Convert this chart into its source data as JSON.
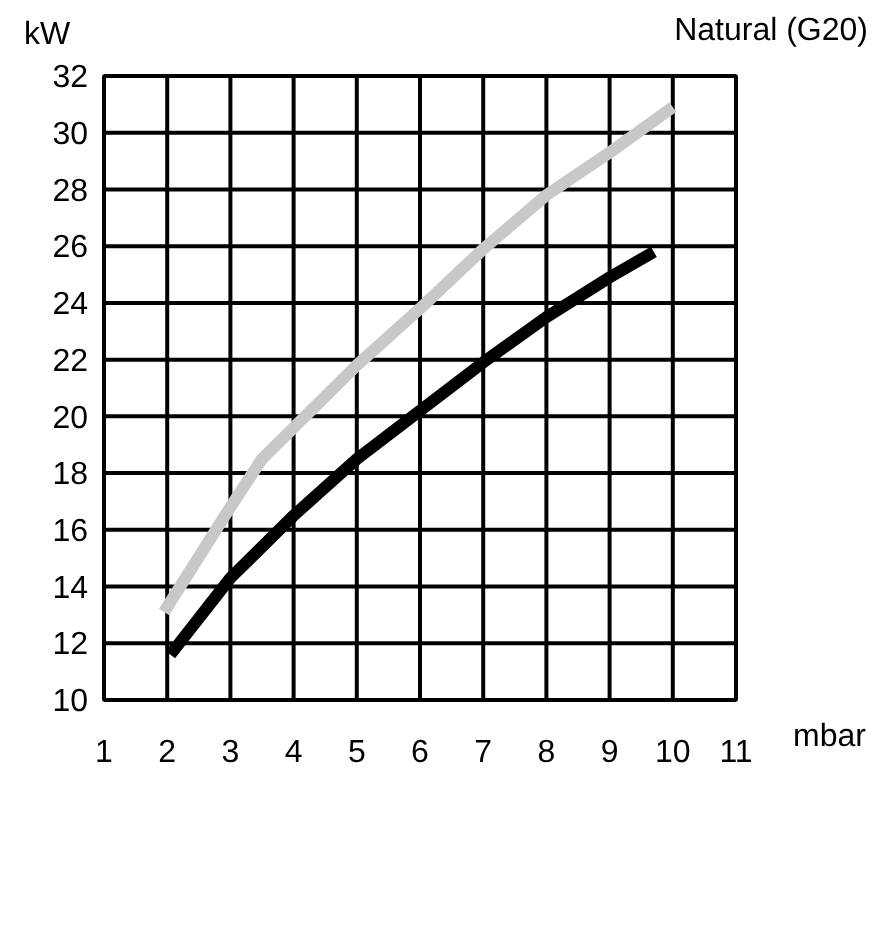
{
  "chart_data": {
    "type": "line",
    "title": "Natural (G20)",
    "xlabel": "mbar",
    "ylabel": "kW",
    "xlim": [
      1,
      11
    ],
    "xticks": [
      1,
      2,
      3,
      4,
      5,
      6,
      7,
      8,
      9,
      10,
      11
    ],
    "ylim": [
      10,
      32
    ],
    "yticks": [
      10,
      12,
      14,
      16,
      18,
      20,
      22,
      24,
      26,
      28,
      30,
      32
    ],
    "grid": true,
    "marker": "none",
    "line_style": "solid",
    "series": [
      {
        "color": "#000000",
        "x": [
          2.05,
          3,
          4,
          5,
          6,
          7,
          8,
          9,
          9.7
        ],
        "values": [
          11.6,
          14.3,
          16.5,
          18.5,
          20.2,
          21.9,
          23.5,
          24.9,
          25.8
        ]
      },
      {
        "color": "#c8c8c8",
        "x": [
          1.95,
          3,
          3.5,
          4,
          5,
          6,
          7,
          8,
          9,
          10
        ],
        "values": [
          13.1,
          16.8,
          18.5,
          19.6,
          21.8,
          23.8,
          25.9,
          27.8,
          29.3,
          30.9
        ]
      }
    ]
  }
}
